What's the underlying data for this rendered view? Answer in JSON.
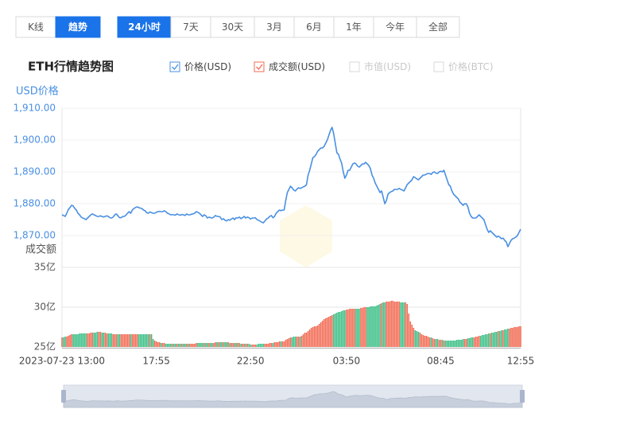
{
  "toolbar": {
    "view_tabs": [
      "K线",
      "趋势"
    ],
    "active_view": 1,
    "period_tabs": [
      "24小时",
      "7天",
      "30天",
      "3月",
      "6月",
      "1年",
      "今年",
      "全部"
    ],
    "active_period": 0
  },
  "chart_data": {
    "type": "line",
    "title": "ETH行情趋势图",
    "y_label": "USD价格",
    "y2_label": "成交额",
    "inactive_series": [
      "市值(USD)",
      "价格(BTC)"
    ],
    "ylim": [
      1866,
      1910
    ],
    "yticks": [
      {
        "value": 1870,
        "label": "1,870.00"
      },
      {
        "value": 1880,
        "label": "1,880.00"
      },
      {
        "value": 1890,
        "label": "1,890.00"
      },
      {
        "value": 1900,
        "label": "1,900.00"
      },
      {
        "value": 1910,
        "label": "1,910.00"
      }
    ],
    "y2lim": [
      25,
      35
    ],
    "y2ticks": [
      {
        "value": 25,
        "label": "25亿"
      },
      {
        "value": 30,
        "label": "30亿"
      },
      {
        "value": 35,
        "label": "35亿"
      }
    ],
    "grid": true,
    "up_color": "#f26b54",
    "down_color": "#3cbf86",
    "categories": [
      "2023-07-23 13:00",
      null,
      null,
      null,
      null,
      null,
      null,
      null,
      null,
      null,
      null,
      null,
      null,
      null,
      null,
      null,
      null,
      null,
      null,
      null,
      null,
      null,
      null,
      null,
      null,
      null,
      null,
      null,
      null,
      null,
      null,
      null,
      null,
      null,
      null,
      null,
      null,
      null,
      null,
      null,
      null,
      null,
      null,
      null,
      null,
      null,
      null,
      null,
      null,
      null,
      null,
      null,
      null,
      null,
      null,
      null,
      null,
      null,
      null,
      "17:55",
      null,
      null,
      null,
      null,
      null,
      null,
      null,
      null,
      null,
      null,
      null,
      null,
      null,
      null,
      null,
      null,
      null,
      null,
      null,
      null,
      null,
      null,
      null,
      null,
      null,
      null,
      null,
      null,
      null,
      null,
      null,
      null,
      null,
      null,
      null,
      null,
      null,
      null,
      null,
      null,
      null,
      null,
      null,
      null,
      null,
      null,
      null,
      null,
      null,
      null,
      null,
      null,
      null,
      null,
      null,
      null,
      null,
      null,
      "22:50",
      null,
      null,
      null,
      null,
      null,
      null,
      null,
      null,
      null,
      null,
      null,
      null,
      null,
      null,
      null,
      null,
      null,
      null,
      null,
      null,
      null,
      null,
      null,
      null,
      null,
      null,
      null,
      null,
      null,
      null,
      null,
      null,
      null,
      null,
      null,
      null,
      null,
      null,
      null,
      null,
      null,
      null,
      null,
      null,
      null,
      null,
      null,
      null,
      null,
      null,
      null,
      null,
      null,
      null,
      null,
      null,
      null,
      null,
      null,
      "03:50",
      null,
      null,
      null,
      null,
      null,
      null,
      null,
      null,
      null,
      null,
      null,
      null,
      null,
      null,
      null,
      null,
      null,
      null,
      null,
      null,
      null,
      null,
      null,
      null,
      null,
      null,
      null,
      null,
      null,
      null,
      null,
      null,
      null,
      null,
      null,
      null,
      null,
      null,
      null,
      null,
      null,
      null,
      null,
      null,
      null,
      null,
      null,
      null,
      null,
      null,
      null,
      null,
      null,
      null,
      null,
      null,
      null,
      null,
      "08:45",
      null,
      null,
      null,
      null,
      null,
      null,
      null,
      null,
      null,
      null,
      null,
      null,
      null,
      null,
      null,
      null,
      null,
      null,
      null,
      null,
      null,
      null,
      null,
      null,
      null,
      null,
      null,
      null,
      null,
      null,
      null,
      null,
      null,
      null,
      null,
      null,
      null,
      null,
      null,
      null,
      null,
      null,
      null,
      null,
      null,
      null,
      null,
      null,
      null,
      "12:55"
    ],
    "series": [
      {
        "name": "价格(USD)",
        "type": "line",
        "color": "#4a90e2",
        "values": [
          1876.5,
          1876.3,
          1876,
          1877,
          1878.2,
          1878.8,
          1879.5,
          1879.3,
          1878.5,
          1878,
          1877,
          1876.5,
          1875.8,
          1875.5,
          1875.3,
          1875,
          1875.5,
          1876,
          1876.5,
          1876.8,
          1876.5,
          1876.3,
          1876,
          1876,
          1876.2,
          1876,
          1875.8,
          1876,
          1876.2,
          1876,
          1875.6,
          1875.5,
          1875.8,
          1876.5,
          1876.8,
          1876.2,
          1875.6,
          1875.6,
          1876,
          1876,
          1876.4,
          1877,
          1877.5,
          1877,
          1878,
          1878.5,
          1878.8,
          1879,
          1878.8,
          1878.6,
          1878.5,
          1878,
          1877.8,
          1877.2,
          1877,
          1877.4,
          1877.2,
          1877,
          1877,
          1877.3,
          1877.5,
          1877.6,
          1877.5,
          1877.5,
          1877.8,
          1877.5,
          1877,
          1876.8,
          1876.5,
          1876.6,
          1876.5,
          1876.4,
          1876.8,
          1876.5,
          1876.4,
          1876.6,
          1876.5,
          1876.3,
          1876.8,
          1876.5,
          1876.5,
          1876.7,
          1876.8,
          1877,
          1877.5,
          1877.3,
          1877,
          1876.5,
          1876,
          1876.5,
          1876.2,
          1875.5,
          1875.8,
          1875.6,
          1875.5,
          1875.8,
          1876.3,
          1876,
          1876,
          1875.8,
          1875,
          1875.3,
          1874.8,
          1874.6,
          1875,
          1874.8,
          1875.2,
          1875.5,
          1875,
          1875.6,
          1875.5,
          1875.8,
          1875.3,
          1875.6,
          1876,
          1875.5,
          1875.8,
          1875.6,
          1875.2,
          1875.5,
          1875.5,
          1875.6,
          1875,
          1874.8,
          1874.5,
          1874.2,
          1874,
          1874.6,
          1875.2,
          1875.5,
          1876,
          1876.3,
          1875.6,
          1876,
          1877,
          1877.5,
          1878,
          1877.8,
          1878,
          1878,
          1881,
          1883.5,
          1884.5,
          1885.5,
          1885,
          1884.3,
          1884,
          1884.6,
          1885,
          1884.8,
          1885,
          1885.3,
          1885.5,
          1886,
          1889,
          1890.5,
          1892.5,
          1894.5,
          1894.8,
          1895.5,
          1896.5,
          1897,
          1897.5,
          1897.5,
          1898,
          1899,
          1900,
          1901.5,
          1903,
          1904,
          1902,
          1899,
          1896,
          1895.5,
          1894,
          1892.7,
          1890,
          1888,
          1889,
          1890.5,
          1890.5,
          1891.5,
          1892.5,
          1892.8,
          1892.5,
          1891.8,
          1891.5,
          1892,
          1892.5,
          1892.5,
          1893,
          1892.5,
          1892,
          1891,
          1889,
          1888,
          1886.5,
          1885.5,
          1884.5,
          1883.5,
          1884,
          1882,
          1880,
          1881,
          1883,
          1883.5,
          1883.8,
          1884,
          1884.5,
          1884.5,
          1884.5,
          1884.8,
          1884.5,
          1884.3,
          1884,
          1885,
          1886,
          1886.5,
          1887,
          1887.5,
          1888.5,
          1888.2,
          1887.8,
          1887.5,
          1888,
          1888.5,
          1889,
          1889,
          1889.3,
          1889.5,
          1889.5,
          1889.2,
          1889.8,
          1890,
          1889.6,
          1889.5,
          1890,
          1890.2,
          1890,
          1890.5,
          1889,
          1887.5,
          1886,
          1885.5,
          1884,
          1883,
          1882.5,
          1882,
          1881.5,
          1880.5,
          1880,
          1879.5,
          1880,
          1880,
          1879,
          1877,
          1876,
          1875.5,
          1875.5,
          1875.5,
          1876,
          1876.5,
          1876,
          1875.5,
          1875,
          1873.5,
          1872,
          1871,
          1871.5,
          1871,
          1870.5,
          1870,
          1869.5,
          1869.8,
          1869.5,
          1869,
          1869.2,
          1868.5,
          1868,
          1866.5,
          1867.5,
          1868.5,
          1869,
          1869.2,
          1869.5,
          1870,
          1871,
          1872
        ]
      },
      {
        "name": "成交额(USD)",
        "type": "bar",
        "axis": "y2",
        "color": "#f26b54",
        "values": [
          26.2,
          26.2,
          26.3,
          26.3,
          26.4,
          26.5,
          26.6,
          26.6,
          26.6,
          26.6,
          26.6,
          26.7,
          26.7,
          26.7,
          26.7,
          26.7,
          26.7,
          26.7,
          26.8,
          26.8,
          26.8,
          26.8,
          26.9,
          26.9,
          26.9,
          26.8,
          26.8,
          26.8,
          26.7,
          26.7,
          26.7,
          26.7,
          26.6,
          26.6,
          26.6,
          26.6,
          26.6,
          26.6,
          26.6,
          26.6,
          26.6,
          26.6,
          26.6,
          26.6,
          26.6,
          26.6,
          26.6,
          26.6,
          26.6,
          26.6,
          26.6,
          26.6,
          26.6,
          26.6,
          26.6,
          26.6,
          26.6,
          26.0,
          25.8,
          25.7,
          25.6,
          25.6,
          25.5,
          25.5,
          25.5,
          25.4,
          25.4,
          25.4,
          25.4,
          25.4,
          25.4,
          25.4,
          25.4,
          25.4,
          25.4,
          25.4,
          25.4,
          25.4,
          25.4,
          25.4,
          25.4,
          25.4,
          25.4,
          25.4,
          25.5,
          25.5,
          25.5,
          25.5,
          25.5,
          25.5,
          25.5,
          25.5,
          25.5,
          25.5,
          25.5,
          25.5,
          25.6,
          25.6,
          25.6,
          25.6,
          25.6,
          25.6,
          25.6,
          25.6,
          25.6,
          25.5,
          25.5,
          25.5,
          25.5,
          25.5,
          25.5,
          25.5,
          25.4,
          25.4,
          25.4,
          25.4,
          25.4,
          25.4,
          25.3,
          25.3,
          25.3,
          25.3,
          25.3,
          25.4,
          25.4,
          25.4,
          25.4,
          25.4,
          25.4,
          25.4,
          25.5,
          25.5,
          25.5,
          25.6,
          25.6,
          25.6,
          25.7,
          25.7,
          25.7,
          25.7,
          25.9,
          26.0,
          26.1,
          26.2,
          26.2,
          26.3,
          26.3,
          26.3,
          26.3,
          26.3,
          26.4,
          26.6,
          26.8,
          26.8,
          27.0,
          27.2,
          27.4,
          27.5,
          27.6,
          27.6,
          27.7,
          27.9,
          28.1,
          28.3,
          28.5,
          28.6,
          28.7,
          28.8,
          28.9,
          29.0,
          29.1,
          29.2,
          29.3,
          29.4,
          29.4,
          29.5,
          29.6,
          29.6,
          29.7,
          29.7,
          29.8,
          29.8,
          29.8,
          29.8,
          29.8,
          29.8,
          29.8,
          29.9,
          29.9,
          30.0,
          30.0,
          30.0,
          30.0,
          30.1,
          30.1,
          30.1,
          30.1,
          30.2,
          30.3,
          30.4,
          30.5,
          30.6,
          30.6,
          30.7,
          30.7,
          30.7,
          30.8,
          30.8,
          30.7,
          30.7,
          30.7,
          30.7,
          30.6,
          30.6,
          30.6,
          30.6,
          30.4,
          29.2,
          28.2,
          27.8,
          27.4,
          27.1,
          27.0,
          26.9,
          26.8,
          26.6,
          26.5,
          26.4,
          26.4,
          26.3,
          26.2,
          26.2,
          26.1,
          26.0,
          26.0,
          26.0,
          25.9,
          25.9,
          25.9,
          25.8,
          25.8,
          25.8,
          25.8,
          25.8,
          25.8,
          25.8,
          25.8,
          25.9,
          25.9,
          25.9,
          25.9,
          26.0,
          26.0,
          26.0,
          26.1,
          26.1,
          26.2,
          26.2,
          26.2,
          26.3,
          26.3,
          26.4,
          26.4,
          26.5,
          26.5,
          26.6,
          26.6,
          26.7,
          26.7,
          26.8,
          26.8,
          26.9,
          26.9,
          27.0,
          27.0,
          27.1,
          27.1,
          27.2,
          27.2,
          27.3,
          27.3,
          27.4,
          27.4,
          27.5,
          27.5,
          27.5,
          27.6,
          27.6
        ]
      }
    ]
  }
}
